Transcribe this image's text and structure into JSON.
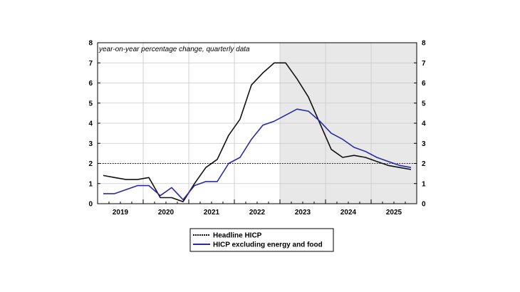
{
  "chart_data": {
    "type": "line",
    "title": "",
    "note": "year-on-year percentage change, quarterly data",
    "xlabel": "",
    "ylabel": "",
    "x_tick_labels": [
      "2019",
      "2020",
      "2021",
      "2022",
      "2023",
      "2024",
      "2025"
    ],
    "x": [
      "2019Q1",
      "2019Q2",
      "2019Q3",
      "2019Q4",
      "2020Q1",
      "2020Q2",
      "2020Q3",
      "2020Q4",
      "2021Q1",
      "2021Q2",
      "2021Q3",
      "2021Q4",
      "2022Q1",
      "2022Q2",
      "2022Q3",
      "2022Q4",
      "2023Q1",
      "2023Q2",
      "2023Q3",
      "2023Q4",
      "2024Q1",
      "2024Q2",
      "2024Q3",
      "2024Q4",
      "2025Q1",
      "2025Q2",
      "2025Q3",
      "2025Q4"
    ],
    "ylim": [
      0,
      8
    ],
    "y_ticks": [
      0,
      1,
      2,
      3,
      4,
      5,
      6,
      7,
      8
    ],
    "right_axis": true,
    "grid": true,
    "shaded_region": {
      "from": "2023Q1",
      "to": "2025Q4",
      "color": "#e8e8e8"
    },
    "reference_line": {
      "y": 2,
      "style": "dotted"
    },
    "legend_position": "bottom-center",
    "series": [
      {
        "name": "Headline HICP",
        "color": "#111111",
        "values": [
          1.4,
          1.3,
          1.2,
          1.2,
          1.3,
          0.3,
          0.3,
          0.1,
          1.0,
          1.8,
          2.2,
          3.4,
          4.2,
          5.9,
          6.5,
          7.0,
          7.0,
          6.2,
          5.3,
          4.0,
          2.7,
          2.3,
          2.4,
          2.3,
          2.1,
          1.9,
          1.8,
          1.7
        ]
      },
      {
        "name": "HICP excluding energy and food",
        "color": "#2a2aa8",
        "values": [
          0.5,
          0.5,
          0.7,
          0.9,
          0.9,
          0.4,
          0.8,
          0.2,
          0.9,
          1.1,
          1.1,
          2.0,
          2.3,
          3.2,
          3.9,
          4.1,
          4.4,
          4.7,
          4.6,
          4.1,
          3.5,
          3.2,
          2.8,
          2.6,
          2.3,
          2.1,
          1.9,
          1.8
        ]
      }
    ]
  }
}
